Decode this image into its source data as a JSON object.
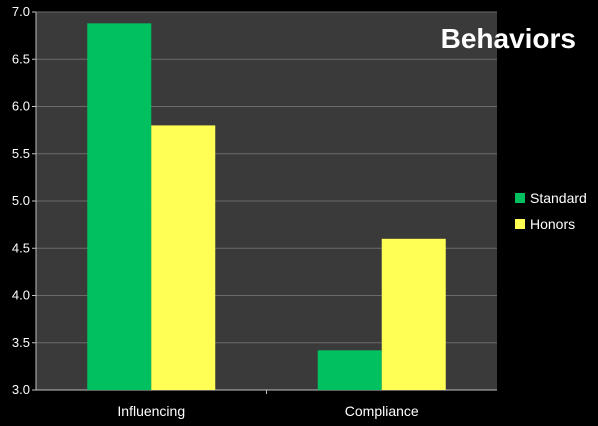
{
  "chart_data": {
    "type": "bar",
    "title": "Behaviors",
    "categories": [
      "Influencing",
      "Compliance"
    ],
    "series": [
      {
        "name": "Standard",
        "values": [
          6.88,
          3.42
        ],
        "color": "#00c060"
      },
      {
        "name": "Honors",
        "values": [
          5.8,
          4.6
        ],
        "color": "#ffff55"
      }
    ],
    "ylim": [
      3.0,
      7.0
    ],
    "yticks": [
      "3.0",
      "3.5",
      "4.0",
      "4.5",
      "5.0",
      "5.5",
      "6.0",
      "6.5",
      "7.0"
    ],
    "grid": true,
    "legend_position": "right",
    "plot_background": "#3a3a3a",
    "page_background": "#000000"
  }
}
